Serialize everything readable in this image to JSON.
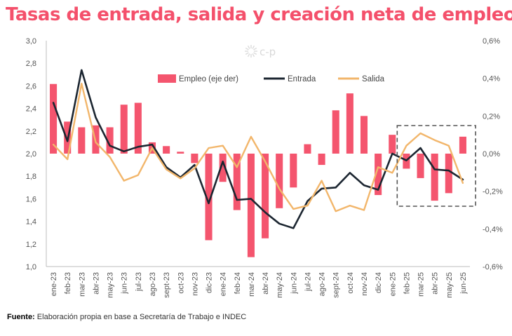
{
  "title": "Tasas de entrada, salida y creación neta de empleo",
  "source": {
    "label": "Fuente:",
    "text": "Elaboración propia en base a Secretaría de Trabajo e INDEC"
  },
  "logo": {
    "text": "c-p"
  },
  "colors": {
    "bar": "#f4556e",
    "entrada": "#1c2631",
    "salida": "#f2b66b",
    "title": "#f4506b",
    "box": "#555555"
  },
  "chart_data": {
    "type": "bar",
    "categories": [
      "ene-23",
      "feb-23",
      "mar-23",
      "abr-23",
      "may-23",
      "jun-23",
      "jul-23",
      "ago-23",
      "sept-23",
      "oct-23",
      "nov-23",
      "dic-23",
      "ene-24",
      "feb-24",
      "mar-24",
      "abr-24",
      "may-24",
      "jun-24",
      "jul-24",
      "ago-24",
      "sept-24",
      "oct-24",
      "nov-24",
      "dic-24",
      "ene-25",
      "feb-25",
      "mar-25",
      "abr-25",
      "may-25",
      "jun-25"
    ],
    "series": [
      {
        "name": "Empleo (eje der)",
        "type": "bar",
        "axis": "right",
        "values": [
          0.37,
          0.17,
          0.14,
          0.15,
          0.14,
          0.26,
          0.27,
          0.06,
          0.04,
          0.01,
          -0.05,
          -0.46,
          -0.15,
          -0.3,
          -0.55,
          -0.45,
          -0.29,
          -0.18,
          0.05,
          -0.06,
          0.23,
          0.32,
          0.2,
          -0.22,
          0.1,
          -0.08,
          -0.13,
          -0.25,
          -0.21,
          0.09
        ]
      },
      {
        "name": "Entrada",
        "type": "line",
        "axis": "left",
        "values": [
          2.45,
          2.11,
          2.74,
          2.32,
          2.07,
          2.02,
          2.06,
          2.08,
          1.88,
          1.79,
          1.9,
          1.56,
          1.93,
          1.59,
          1.6,
          1.48,
          1.38,
          1.34,
          1.58,
          1.69,
          1.7,
          1.83,
          1.72,
          1.68,
          2.0,
          1.94,
          2.05,
          1.86,
          1.85,
          1.77
        ]
      },
      {
        "name": "Salida",
        "type": "line",
        "axis": "left",
        "values": [
          2.08,
          1.95,
          2.62,
          2.1,
          1.97,
          1.76,
          1.81,
          2.05,
          1.86,
          1.78,
          1.87,
          2.05,
          2.07,
          1.88,
          2.15,
          1.93,
          1.69,
          1.51,
          1.54,
          1.76,
          1.49,
          1.54,
          1.5,
          1.88,
          1.83,
          2.07,
          2.18,
          2.12,
          2.07,
          1.74
        ]
      }
    ],
    "y_left": {
      "min": 1.0,
      "max": 3.0,
      "step": 0.2,
      "tick_labels": [
        "1,0",
        "1,2",
        "1,4",
        "1,6",
        "1,8",
        "2,0",
        "2,2",
        "2,4",
        "2,6",
        "2,8",
        "3,0"
      ]
    },
    "y_right": {
      "min": -0.6,
      "max": 0.6,
      "step": 0.2,
      "tick_labels": [
        "-0,6%",
        "-0,4%",
        "-0,2%",
        "0,0%",
        "0,2%",
        "0,4%",
        "0,6%"
      ]
    },
    "highlight_range": [
      "feb-25",
      "jun-25"
    ],
    "legend_position": "top-center",
    "grid": false
  }
}
